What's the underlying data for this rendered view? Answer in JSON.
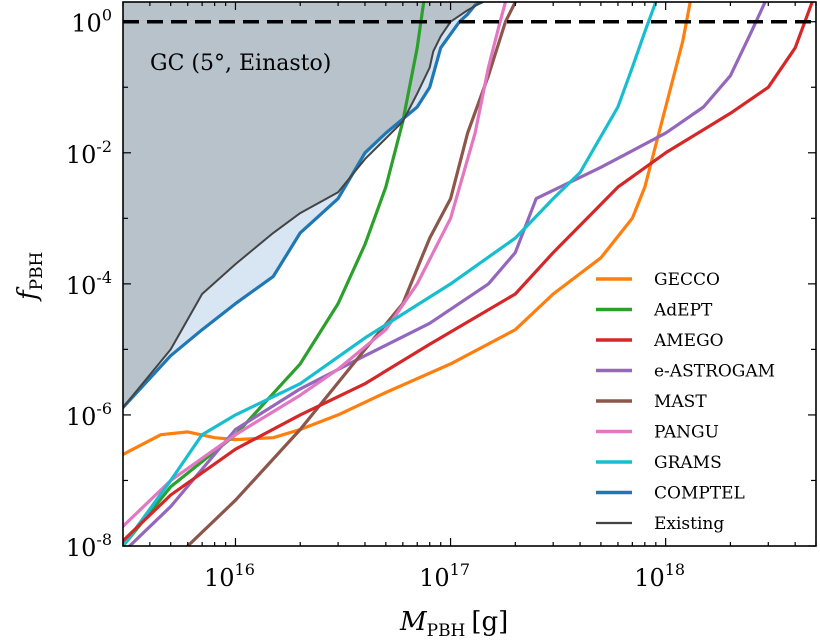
{
  "chart_data": {
    "type": "line",
    "title": "",
    "xlabel": {
      "main": "M",
      "sub": "PBH",
      "unit": "[g]"
    },
    "ylabel": {
      "main": "f",
      "sub": "PBH"
    },
    "xscale": "log",
    "yscale": "log",
    "xlim": [
      3000000000000000.0,
      5e+18
    ],
    "ylim": [
      1e-08,
      2
    ],
    "x_ticks": [
      {
        "value": 1e+16,
        "base": "10",
        "exp": "16"
      },
      {
        "value": 1e+17,
        "base": "10",
        "exp": "17"
      },
      {
        "value": 1e+18,
        "base": "10",
        "exp": "18"
      }
    ],
    "y_ticks": [
      {
        "value": 1e-08,
        "base": "10",
        "exp": "-8"
      },
      {
        "value": 1e-06,
        "base": "10",
        "exp": "-6"
      },
      {
        "value": 0.0001,
        "base": "10",
        "exp": "-4"
      },
      {
        "value": 0.01,
        "base": "10",
        "exp": "-2"
      },
      {
        "value": 1,
        "base": "10",
        "exp": "0"
      }
    ],
    "annotation": "GC (5°, Einasto)",
    "reference_line": {
      "y": 1,
      "style": "dashed",
      "color": "#000000"
    },
    "legend_position": "lower-right",
    "series": [
      {
        "name": "GECCO",
        "color": "#ff7f0e",
        "x": [
          3000000000000000.0,
          4500000000000000.0,
          6000000000000000.0,
          8000000000000000.0,
          1e+16,
          1.5e+16,
          2e+16,
          3e+16,
          5e+16,
          1e+17,
          2e+17,
          3e+17,
          5e+17,
          7e+17,
          8e+17,
          1e+18,
          1.2e+18,
          1.3e+18
        ],
        "y": [
          2.5e-07,
          5e-07,
          5.5e-07,
          4.5e-07,
          4.2e-07,
          4.5e-07,
          6e-07,
          1e-06,
          2.2e-06,
          6e-06,
          2e-05,
          7e-05,
          0.00025,
          0.001,
          0.003,
          0.05,
          0.5,
          2
        ]
      },
      {
        "name": "AdEPT",
        "color": "#2ca02c",
        "x": [
          3000000000000000.0,
          5000000000000000.0,
          1e+16,
          2e+16,
          3e+16,
          4e+16,
          5e+16,
          6e+16,
          7e+16,
          7.5e+16
        ],
        "y": [
          1e-08,
          8e-08,
          5e-07,
          6e-06,
          5e-05,
          0.0004,
          0.003,
          0.03,
          0.4,
          2
        ]
      },
      {
        "name": "AMEGO",
        "color": "#d62728",
        "x": [
          3000000000000000.0,
          5000000000000000.0,
          1e+16,
          2e+16,
          4e+16,
          8e+16,
          2e+17,
          3e+17,
          6e+17,
          1e+18,
          2e+18,
          3e+18,
          4e+18,
          4.8e+18
        ],
        "y": [
          1.2e-08,
          6e-08,
          3e-07,
          1e-06,
          3e-06,
          1.2e-05,
          7e-05,
          0.0003,
          0.003,
          0.01,
          0.04,
          0.1,
          0.4,
          2
        ]
      },
      {
        "name": "e-ASTROGAM",
        "color": "#9467bd",
        "x": [
          3000000000000000.0,
          5000000000000000.0,
          1e+16,
          2e+16,
          4e+16,
          8e+16,
          1.5e+17,
          2e+17,
          2.5e+17,
          5e+17,
          1e+18,
          1.5e+18,
          2e+18,
          2.5e+18,
          2.9e+18
        ],
        "y": [
          8e-09,
          4e-08,
          6e-07,
          2.5e-06,
          8e-06,
          2.5e-05,
          0.0001,
          0.0003,
          0.002,
          0.006,
          0.02,
          0.05,
          0.15,
          0.7,
          2
        ]
      },
      {
        "name": "MAST",
        "color": "#8c564b",
        "x": [
          6000000000000000.0,
          1e+16,
          2e+16,
          4e+16,
          6e+16,
          8e+16,
          1e+17,
          1.2e+17,
          1.5e+17,
          1.8e+17,
          2e+17
        ],
        "y": [
          1e-08,
          5e-08,
          6e-07,
          1e-05,
          5e-05,
          0.0005,
          0.002,
          0.02,
          0.15,
          1,
          2
        ]
      },
      {
        "name": "PANGU",
        "color": "#e377c2",
        "x": [
          3000000000000000.0,
          5000000000000000.0,
          1e+16,
          2e+16,
          3e+16,
          5e+16,
          7e+16,
          1e+17,
          1.3e+17,
          1.5e+17,
          1.7e+17,
          1.8e+17
        ],
        "y": [
          2e-08,
          1e-07,
          5e-07,
          2e-06,
          5e-06,
          2e-05,
          0.0001,
          0.001,
          0.02,
          0.2,
          1,
          2
        ]
      },
      {
        "name": "GRAMS",
        "color": "#17becf",
        "x": [
          3000000000000000.0,
          5000000000000000.0,
          7000000000000000.0,
          1e+16,
          2e+16,
          4e+16,
          1e+17,
          2e+17,
          3e+17,
          4e+17,
          6e+17,
          7e+17,
          8e+17,
          9e+17
        ],
        "y": [
          1e-08,
          1e-07,
          5e-07,
          1e-06,
          3e-06,
          1.5e-05,
          0.0001,
          0.0005,
          0.002,
          0.005,
          0.05,
          0.2,
          0.7,
          2
        ]
      },
      {
        "name": "COMPTEL",
        "color": "#1f77b4",
        "x": [
          3000000000000000.0,
          5000000000000000.0,
          7000000000000000.0,
          1e+16,
          1.5e+16,
          2e+16,
          3e+16,
          4e+16,
          5e+16,
          7e+16,
          8e+16,
          9e+16,
          1.1e+17,
          1.2e+17,
          1.3e+17,
          1.4e+17
        ],
        "y": [
          1.3e-06,
          8e-06,
          2e-05,
          5e-05,
          0.00013,
          0.0006,
          0.002,
          0.01,
          0.02,
          0.05,
          0.1,
          0.4,
          1,
          1.3,
          1.8,
          2
        ]
      },
      {
        "name": "Existing",
        "color": "#444444",
        "x": [
          3000000000000000.0,
          5000000000000000.0,
          7000000000000000.0,
          1e+16,
          1.5e+16,
          2e+16,
          3e+16,
          4e+16,
          6e+16,
          7e+16,
          8e+16,
          8.3e+16,
          9e+16,
          1e+17,
          1.2e+17,
          1.4e+17
        ],
        "y": [
          1.3e-06,
          1e-05,
          7e-05,
          0.0002,
          0.0006,
          0.0012,
          0.0025,
          0.008,
          0.03,
          0.08,
          0.2,
          0.35,
          0.6,
          1,
          1.5,
          2
        ]
      }
    ]
  }
}
